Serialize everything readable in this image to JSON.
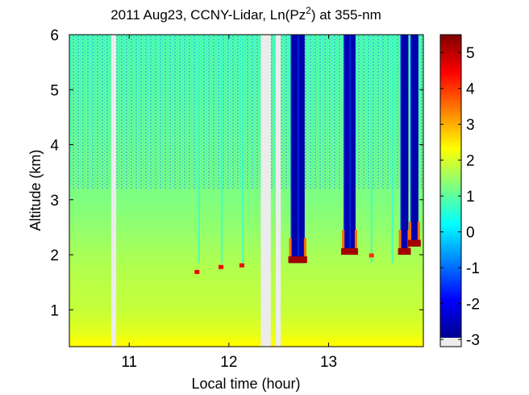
{
  "chart_data": {
    "type": "heatmap",
    "title": "2011 Aug23, CCNY-Lidar, Ln(Pz",
    "title_superscript": "2",
    "title_suffix": ") at 355-nm",
    "xlabel": "Local time (hour)",
    "ylabel": "Altitude (km)",
    "xlim": [
      10.4,
      13.95
    ],
    "ylim": [
      0.33,
      6.0
    ],
    "xticks": [
      11,
      12,
      13
    ],
    "xtick_labels": [
      "11",
      "12",
      "13"
    ],
    "yticks": [
      1,
      2,
      3,
      4,
      5,
      6
    ],
    "ytick_labels": [
      "1",
      "2",
      "3",
      "4",
      "5",
      "6"
    ],
    "colorbar": {
      "range": [
        -3.2,
        5.5
      ],
      "ticks": [
        -3,
        -2,
        -1,
        0,
        1,
        2,
        3,
        4,
        5
      ],
      "tick_labels": [
        "-3",
        "-2",
        "-1",
        "0",
        "1",
        "2",
        "3",
        "4",
        "5"
      ],
      "colormap": "jet",
      "nodata_color": "#ececec"
    },
    "data_gaps_hours": [
      [
        10.82,
        10.87
      ],
      [
        12.32,
        12.42
      ],
      [
        12.47,
        12.52
      ]
    ],
    "background_profile": {
      "description_values": "Ln(Pz2) vs altitude in boundary layer and above",
      "altitude_km": [
        0.33,
        0.6,
        1.0,
        1.5,
        2.0,
        2.5,
        3.0,
        4.0,
        5.0,
        6.0
      ],
      "value": [
        2.3,
        2.0,
        1.75,
        1.65,
        1.5,
        1.3,
        1.15,
        1.0,
        0.85,
        0.75
      ]
    },
    "cloud_columns": [
      {
        "t_start": 12.62,
        "t_end": 12.76,
        "base_km": 1.85,
        "value_above": -2.8
      },
      {
        "t_start": 13.15,
        "t_end": 13.27,
        "base_km": 2.0,
        "value_above": -2.8
      },
      {
        "t_start": 13.72,
        "t_end": 13.8,
        "base_km": 2.0,
        "value_above": -2.8
      },
      {
        "t_start": 13.82,
        "t_end": 13.9,
        "base_km": 2.15,
        "value_above": -2.8
      }
    ],
    "cloud_base_spots": [
      {
        "t": 11.68,
        "alt_km": 1.68,
        "value": 4.5
      },
      {
        "t": 11.92,
        "alt_km": 1.77,
        "value": 4.5
      },
      {
        "t": 12.13,
        "alt_km": 1.8,
        "value": 4.5
      },
      {
        "t": 13.43,
        "alt_km": 1.98,
        "value": 4.0
      }
    ],
    "thin_streaks_hours": [
      11.7,
      11.93,
      12.14,
      13.43,
      13.64
    ]
  }
}
